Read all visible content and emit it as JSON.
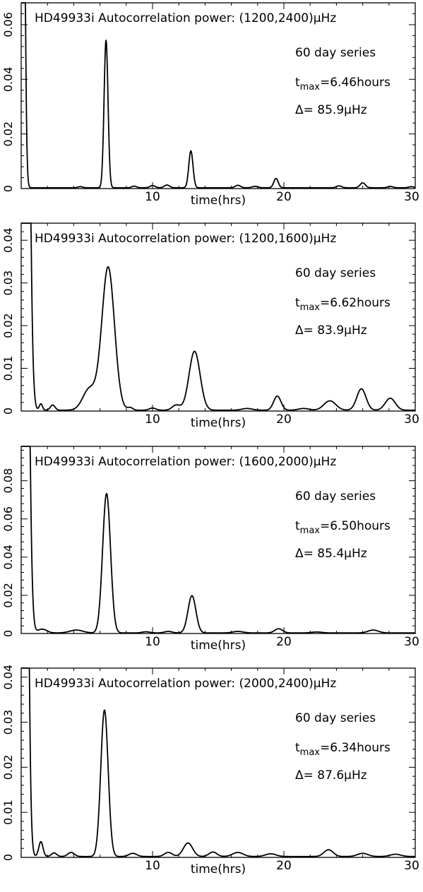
{
  "figure": {
    "xlabel": "time(hrs)",
    "note_series": "60 day series"
  },
  "chart_data": [
    {
      "type": "line",
      "title": "HD49933i Autocorrelation power: (1200,2400)μHz",
      "xlabel": "time(hrs)",
      "ylabel": "",
      "xlim": [
        0,
        30
      ],
      "ylim": [
        0,
        0.068
      ],
      "xticks": [
        10,
        20,
        30
      ],
      "yticks": [
        0,
        0.02,
        0.04,
        0.06
      ],
      "ytick_labels": [
        "0",
        "0.02",
        "0.04",
        "0.06"
      ],
      "series_text": "60 day series",
      "tmax_prefix": "t",
      "tmax_sub": "max",
      "tmax_value": "=6.46hours",
      "delta_text": "Δ= 85.9μHz",
      "base": 0.0003,
      "peaks": [
        [
          0.05,
          0.16,
          0.3
        ],
        [
          6.46,
          0.15,
          0.054
        ],
        [
          12.92,
          0.16,
          0.0135
        ],
        [
          19.4,
          0.17,
          0.0034
        ],
        [
          26.0,
          0.2,
          0.0018
        ],
        [
          4.5,
          0.18,
          0.0004
        ],
        [
          8.6,
          0.18,
          0.0006
        ],
        [
          10.0,
          0.2,
          0.0008
        ],
        [
          11.1,
          0.2,
          0.001
        ],
        [
          16.5,
          0.2,
          0.0009
        ],
        [
          17.8,
          0.22,
          0.0005
        ],
        [
          24.2,
          0.2,
          0.0007
        ],
        [
          28.1,
          0.2,
          0.0005
        ],
        [
          29.7,
          0.2,
          0.0004
        ]
      ]
    },
    {
      "type": "line",
      "title": "HD49933i Autocorrelation power: (1200,1600)μHz",
      "xlabel": "time(hrs)",
      "ylabel": "",
      "xlim": [
        0,
        30
      ],
      "ylim": [
        0,
        0.044
      ],
      "xticks": [
        10,
        20,
        30
      ],
      "yticks": [
        0,
        0.01,
        0.02,
        0.03,
        0.04
      ],
      "ytick_labels": [
        "0",
        "0.01",
        "0.02",
        "0.03",
        "0.04"
      ],
      "series_text": "60 day series",
      "tmax_prefix": "t",
      "tmax_sub": "max",
      "tmax_value": "=6.62hours",
      "delta_text": "Δ= 83.9μHz",
      "base": 0.0002,
      "peaks": [
        [
          0.2,
          0.28,
          0.3
        ],
        [
          6.62,
          0.48,
          0.0335
        ],
        [
          5.2,
          0.5,
          0.005
        ],
        [
          13.2,
          0.42,
          0.0138
        ],
        [
          1.5,
          0.12,
          0.0015
        ],
        [
          2.4,
          0.18,
          0.0012
        ],
        [
          19.5,
          0.28,
          0.0033
        ],
        [
          23.5,
          0.45,
          0.0022
        ],
        [
          25.9,
          0.35,
          0.005
        ],
        [
          28.1,
          0.38,
          0.0028
        ],
        [
          8.3,
          0.2,
          0.0006
        ],
        [
          10.0,
          0.25,
          0.0005
        ],
        [
          11.8,
          0.3,
          0.0012
        ],
        [
          17.2,
          0.4,
          0.0004
        ],
        [
          21.5,
          0.4,
          0.0004
        ]
      ]
    },
    {
      "type": "line",
      "title": "HD49933i Autocorrelation power: (1600,2000)μHz",
      "xlabel": "time(hrs)",
      "ylabel": "",
      "xlim": [
        0,
        30
      ],
      "ylim": [
        0,
        0.098
      ],
      "xticks": [
        10,
        20,
        30
      ],
      "yticks": [
        0,
        0.02,
        0.04,
        0.06,
        0.08
      ],
      "ytick_labels": [
        "0",
        "0.02",
        "0.04",
        "0.06",
        "0.08"
      ],
      "series_text": "60 day series",
      "tmax_prefix": "t",
      "tmax_sub": "max",
      "tmax_value": "=6.50hours",
      "delta_text": "Δ= 85.4μHz",
      "base": 0.0003,
      "peaks": [
        [
          0.2,
          0.27,
          0.5
        ],
        [
          6.5,
          0.3,
          0.073
        ],
        [
          13.0,
          0.3,
          0.0195
        ],
        [
          1.6,
          0.35,
          0.002
        ],
        [
          4.2,
          0.5,
          0.0015
        ],
        [
          19.6,
          0.3,
          0.0022
        ],
        [
          26.8,
          0.4,
          0.0015
        ],
        [
          9.5,
          0.3,
          0.0006
        ],
        [
          11.2,
          0.3,
          0.0008
        ],
        [
          16.5,
          0.4,
          0.0008
        ],
        [
          22.5,
          0.4,
          0.0005
        ]
      ]
    },
    {
      "type": "line",
      "title": "HD49933i Autocorrelation power: (2000,2400)μHz",
      "xlabel": "time(hrs)",
      "ylabel": "",
      "xlim": [
        0,
        30
      ],
      "ylim": [
        0,
        0.042
      ],
      "xticks": [
        10,
        20,
        30
      ],
      "yticks": [
        0,
        0.01,
        0.02,
        0.03,
        0.04
      ],
      "ytick_labels": [
        "0",
        "0.01",
        "0.02",
        "0.03",
        "0.04"
      ],
      "series_text": "60 day series",
      "tmax_prefix": "t",
      "tmax_sub": "max",
      "tmax_value": "=6.34hours",
      "delta_text": "Δ= 87.6μHz",
      "base": 0.0002,
      "peaks": [
        [
          0.15,
          0.24,
          0.3
        ],
        [
          6.34,
          0.28,
          0.0325
        ],
        [
          1.5,
          0.16,
          0.0033
        ],
        [
          12.7,
          0.35,
          0.003
        ],
        [
          23.4,
          0.35,
          0.0015
        ],
        [
          2.5,
          0.2,
          0.0008
        ],
        [
          3.8,
          0.25,
          0.0009
        ],
        [
          8.5,
          0.3,
          0.0007
        ],
        [
          11.2,
          0.3,
          0.0009
        ],
        [
          14.6,
          0.3,
          0.001
        ],
        [
          16.5,
          0.4,
          0.0009
        ],
        [
          19.0,
          0.4,
          0.0006
        ],
        [
          26.0,
          0.4,
          0.0007
        ],
        [
          28.5,
          0.4,
          0.0005
        ]
      ]
    }
  ]
}
